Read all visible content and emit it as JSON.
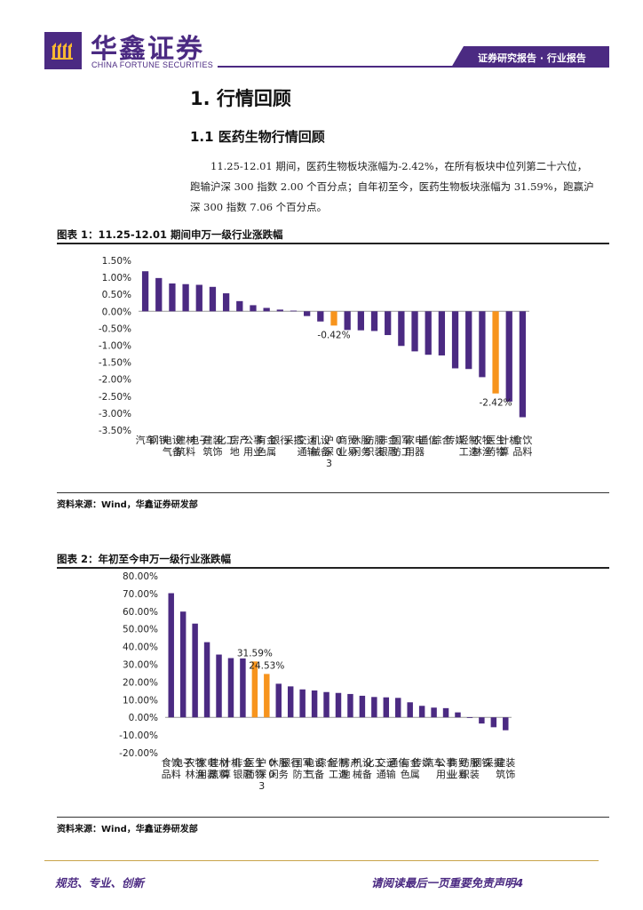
{
  "header": {
    "brand_cn": "华鑫证券",
    "brand_en": "CHINA FORTUNE SECURITIES",
    "tag": "证券研究报告 · 行业报告",
    "logo_color": "#4b2a82"
  },
  "section": {
    "title": "1. 行情回顾",
    "subtitle": "1.1 医药生物行情回顾",
    "paragraph_lines": [
      "11.25-12.01 期间，医药生物板块涨幅为-2.42%，在所有板块中位列第二十六位，",
      "跑输沪深 300 指数 2.00 个百分点；自年初至今，医药生物板块涨幅为 31.59%，跑赢沪",
      "深 300 指数 7.06 个百分点。"
    ]
  },
  "figures": [
    {
      "title": "图表 1：11.25-12.01 期间申万一级行业涨跌幅",
      "source": "资料来源：Wind，华鑫证券研发部"
    },
    {
      "title": "图表 2：年初至今申万一级行业涨跌幅",
      "source": "资料来源：Wind，华鑫证券研发部"
    }
  ],
  "chart_data": [
    {
      "type": "bar",
      "title": "11.25-12.01 期间申万一级行业涨跌幅",
      "ylim": [
        -3.5,
        1.5
      ],
      "yticks": [
        "1.50%",
        "1.00%",
        "0.50%",
        "0.00%",
        "-0.50%",
        "-1.00%",
        "-1.50%",
        "-2.00%",
        "-2.50%",
        "-3.00%",
        "-3.50%"
      ],
      "categories": [
        "汽车",
        "钢铁",
        "电气设备",
        "建筑材料",
        "电子",
        "建筑装饰",
        "化工",
        "房地产",
        "公用事业",
        "有色金属",
        "银行",
        "采掘",
        "交通运输",
        "机械设备",
        "沪深300",
        "商业贸易",
        "休闲服务",
        "纺织服装",
        "非银金融",
        "国防军工",
        "家用电器",
        "通信",
        "综合",
        "传媒",
        "轻工制造",
        "农林牧渔",
        "医药生物",
        "计算机",
        "食品饮料"
      ],
      "values": [
        1.18,
        0.98,
        0.82,
        0.8,
        0.78,
        0.72,
        0.53,
        0.3,
        0.18,
        0.1,
        0.05,
        0.02,
        -0.14,
        -0.3,
        -0.42,
        -0.55,
        -0.56,
        -0.58,
        -0.7,
        -1.02,
        -1.18,
        -1.28,
        -1.3,
        -1.68,
        -1.7,
        -1.94,
        -2.42,
        -2.66,
        -3.12
      ],
      "highlight": [
        "沪深300",
        "医药生物"
      ],
      "data_labels": [
        {
          "category": "沪深300",
          "text": "-0.42%"
        },
        {
          "category": "医药生物",
          "text": "-2.42%"
        }
      ],
      "colors": {
        "bar": "#4b2a82",
        "highlight": "#f7941d"
      }
    },
    {
      "type": "bar",
      "title": "年初至今申万一级行业涨跌幅",
      "ylim": [
        -20,
        80
      ],
      "yticks": [
        "80.00%",
        "70.00%",
        "60.00%",
        "50.00%",
        "40.00%",
        "30.00%",
        "20.00%",
        "10.00%",
        "0.00%",
        "-10.00%",
        "-20.00%"
      ],
      "categories": [
        "食品饮料",
        "电子",
        "农林牧渔",
        "家用电器",
        "建筑材料",
        "计算机",
        "非银金融",
        "医药生物",
        "沪深300",
        "休闲服务",
        "银行",
        "国防军工",
        "电气设备",
        "综合",
        "轻工制造",
        "房地产",
        "机械设备",
        "化工",
        "交通运输",
        "通信",
        "有色金属",
        "传媒",
        "汽车",
        "公用事业",
        "商业贸易",
        "纺织服装",
        "钢铁",
        "采掘",
        "建筑装饰"
      ],
      "values": [
        70.2,
        59.8,
        53,
        42.5,
        35.5,
        33.5,
        33.3,
        31.59,
        24.53,
        19,
        17.5,
        15.8,
        15.2,
        14.3,
        13.8,
        13.2,
        12.2,
        11.5,
        11.3,
        11,
        8.5,
        6.5,
        5.5,
        5.2,
        2.8,
        -0.4,
        -3.5,
        -5.6,
        -7.3
      ],
      "highlight": [
        "医药生物",
        "沪深300"
      ],
      "data_labels": [
        {
          "category": "医药生物",
          "text": "31.59%"
        },
        {
          "category": "沪深300",
          "text": "24.53%"
        }
      ],
      "colors": {
        "bar": "#4b2a82",
        "highlight": "#f7941d"
      }
    }
  ],
  "footer": {
    "left": "规范、专业、创新",
    "right": "请阅读最后一页重要免责声明",
    "page": "4",
    "line_color": "#c9a44a"
  }
}
